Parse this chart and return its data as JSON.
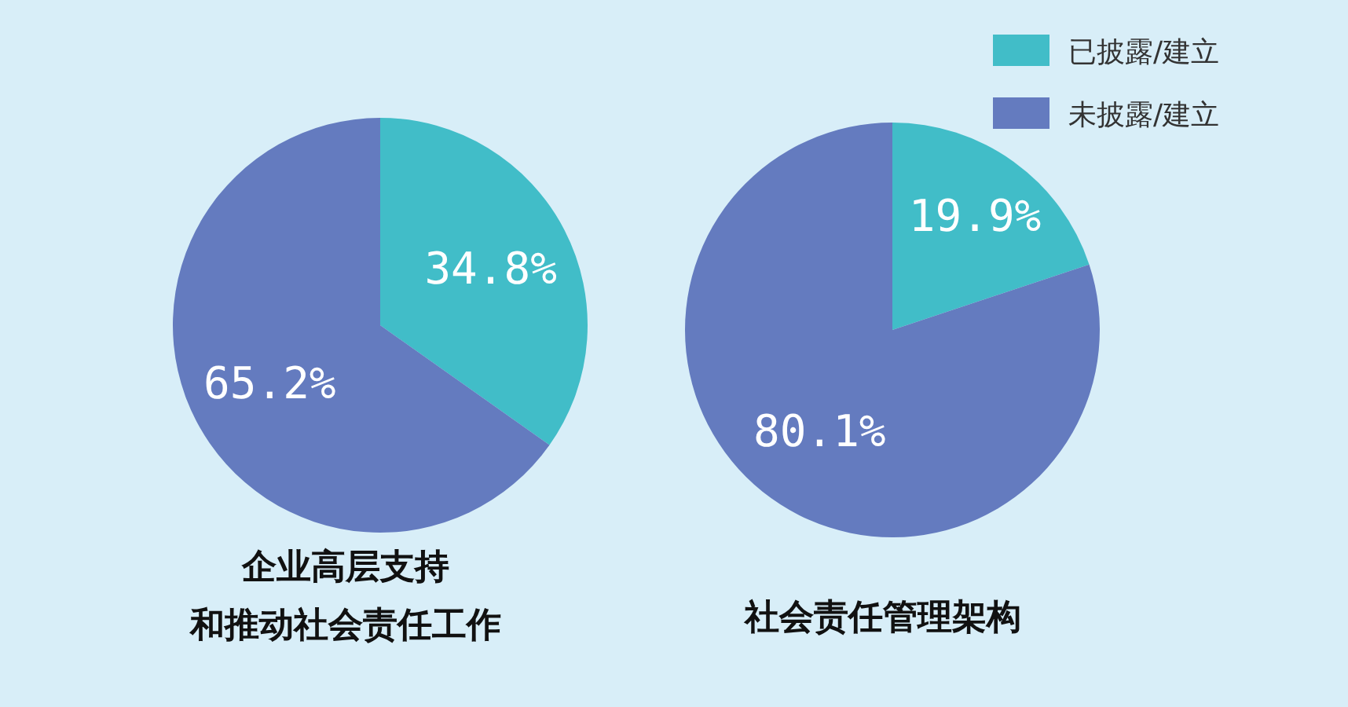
{
  "chart_data": [
    {
      "type": "pie",
      "title": "企业高层支持",
      "subtitle": "和推动社会责任工作",
      "categories": [
        null,
        null
      ],
      "values": [
        34.8,
        65.2
      ],
      "colors": [
        "#41bdc8",
        "#647bbf"
      ],
      "value_labels": [
        "34.8%",
        "65.2%"
      ]
    },
    {
      "type": "pie",
      "title": "社会责任管理架构",
      "categories": [
        "已披露/建立",
        "未披露/建立"
      ],
      "values": [
        19.9,
        80.1
      ],
      "colors": [
        "#41bdc8",
        "#647bbf"
      ],
      "value_labels": [
        "19.9%",
        "80.1%"
      ],
      "legend": "top right"
    }
  ]
}
